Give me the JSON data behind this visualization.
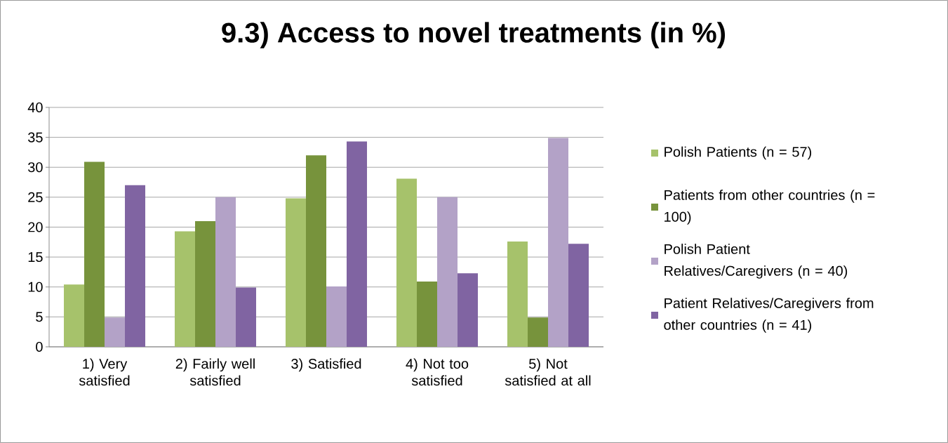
{
  "chart_data": {
    "type": "bar",
    "title": "9.3) Access to novel treatments (in %)",
    "categories": [
      "1) Very satisfied",
      "2) Fairly well satisfied",
      "3) Satisfied",
      "4) Not too satisfied",
      "5) Not satisfied at all"
    ],
    "series": [
      {
        "name": "Polish Patients (n = 57)",
        "color": "#a6c26b",
        "values": [
          10.4,
          19.3,
          24.8,
          28.1,
          17.6
        ]
      },
      {
        "name": "Patients from other countries (n = 100)",
        "color": "#77933c",
        "values": [
          30.9,
          21.0,
          32.0,
          10.9,
          4.9
        ]
      },
      {
        "name": "Polish Patient Relatives/Caregivers (n = 40)",
        "color": "#b3a2c7",
        "values": [
          4.9,
          25.0,
          10.1,
          25.0,
          34.9
        ]
      },
      {
        "name": "Patient Relatives/Caregivers from other countries (n = 41)",
        "color": "#8064a2",
        "values": [
          27.0,
          9.9,
          34.3,
          12.3,
          17.2
        ]
      }
    ],
    "ylim": [
      0,
      40
    ],
    "yticks": [
      0,
      5,
      10,
      15,
      20,
      25,
      30,
      35,
      40
    ],
    "grid": "y",
    "legend": "right"
  }
}
